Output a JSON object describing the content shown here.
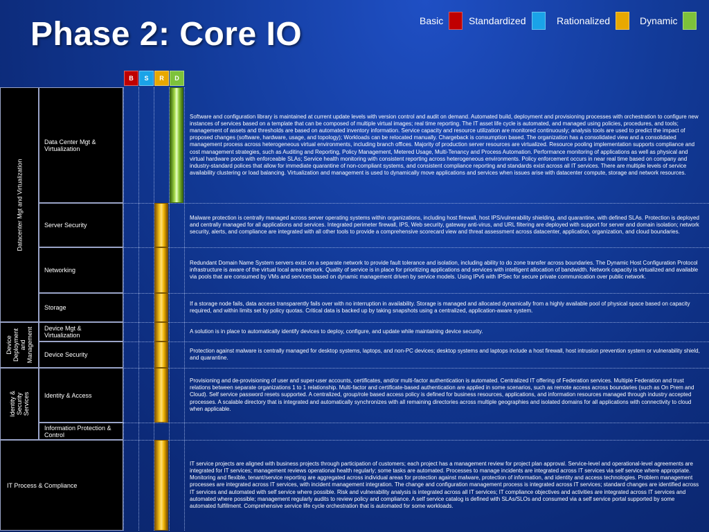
{
  "title": "Phase 2: Core IO",
  "legend": [
    {
      "label": "Basic",
      "color": "#c00000"
    },
    {
      "label": "Standardized",
      "color": "#1aa3e8"
    },
    {
      "label": "Rationalized",
      "color": "#e8a800"
    },
    {
      "label": "Dynamic",
      "color": "#7dc23a"
    }
  ],
  "column_headers": [
    {
      "label": "B",
      "color": "#c00000"
    },
    {
      "label": "S",
      "color": "#1aa3e8"
    },
    {
      "label": "R",
      "color": "#e8a800"
    },
    {
      "label": "D",
      "color": "#7dc23a"
    }
  ],
  "categories": {
    "datacenter": "Datacenter Mgt and Virtualization",
    "device": "Device Deployment and Management",
    "identity": "Identity & Security Services",
    "itprocess": "IT Process & Compliance"
  },
  "rows": [
    {
      "name": "Data Center Mgt & Virtualization",
      "level": "Dynamic",
      "description": "Software and configuration library is maintained at current update levels with version control and audit on demand. Automated build, deployment and provisioning processes with orchestration to configure new instances of services based on a template that can be composed of multiple virtual images; real time reporting.  The IT asset life cycle is automated, and managed using policies, procedures, and tools; management of assets and thresholds are based on automated inventory information. Service capacity and resource utilization are monitored continuously; analysis tools are used to predict the impact of proposed changes (software, hardware, usage, and topology); Workloads can be relocated manually. Chargeback is consumption based. The organization has a consolidated view and a consolidated management process across heterogeneous virtual environments, including branch offices. Majority of production server resources are virtualized. Resource pooling implementation supports compliance and cost management strategies, such as Auditing and Reporting, Policy Management, Metered Usage, Multi-Tenancy and Process Automation. Performance monitoring of applications as well as physical and virtual hardware pools with enforceable SLAs; Service health monitoring with consistent reporting across heterogeneous environments. Policy enforcement occurs in near real time based on company and industry-standard polices that allow for immediate quarantine of non-compliant systems, and consistent compliance reporting and standards exist across all IT services. There are multiple levels of service availability clustering or load balancing. Virtualization and management is used to dynamically move applications and services when issues arise with datacenter compute, storage and network resources."
    },
    {
      "name": "Server Security",
      "level": "Rationalized",
      "description": "Malware protection is centrally managed across server operating systems within organizations, including host firewall, host IPS/vulnerability shielding, and quarantine, with defined SLAs. Protection is deployed and centrally managed for all applications and services. Integrated perimeter firewall, IPS, Web security, gateway anti-virus, and URL filtering are deployed with support for server and domain isolation; network security, alerts, and compliance are integrated with all other tools to provide a comprehensive scorecard view and threat assessment across datacenter, application, organization, and cloud boundaries."
    },
    {
      "name": "Networking",
      "level": "Rationalized",
      "description": "Redundant Domain Name System servers exist on a separate network to provide fault tolerance and isolation, including ability to do zone transfer across boundaries. The Dynamic Host Configuration Protocol infrastructure is aware of the virtual local area network. Quality of service is in place for prioritizing applications and services with intelligent allocation of bandwidth. Network capacity is virtualized and available via pools that are consumed by VMs and services based on dynamic management driven by service models.   Using IPv6 with IPSec for secure private communication over public network."
    },
    {
      "name": "Storage",
      "level": "Rationalized",
      "description": "If a storage node fails, data access transparently fails over with no interruption in availability. Storage is managed and allocated dynamically from a highly available pool of physical space based on capacity required, and within limits set by policy quotas. Critical data is backed up by taking snapshots using a centralized, application-aware system."
    },
    {
      "name": "Device Mgt & Virtualization",
      "level": "Rationalized",
      "description": "A solution is in place to automatically identify devices to deploy, configure, and update while maintaining device security."
    },
    {
      "name": "Device Security",
      "level": "Rationalized",
      "description": "Protection against malware is centrally managed for desktop systems, laptops, and non-PC devices; desktop systems and laptops include a host firewall, host intrusion prevention system or vulnerability shield, and quarantine."
    },
    {
      "name": "Identity & Access",
      "level": "Rationalized",
      "description": "Provisioning and de-provisioning of user and super-user accounts, certificates, and/or multi-factor authentication is automated. Centralized IT offering of Federation services. Multiple Federation and trust relations between separate organizations 1 to 1 relationship. Multi-factor and certificate-based authentication are applied in some scenarios, such as remote access across boundaries (such as On Prem and Cloud). Self service password resets supported. A centralized, group/role based access policy is defined for business resources, applications, and information resources managed through industry accepted processes. A scalable directory that is integrated and automatically synchronizes with all remaining directories across multiple geographies and isolated domains for all applications with connectivity to cloud when applicable."
    },
    {
      "name": "Information Protection & Control",
      "level": "",
      "description": ""
    },
    {
      "name": "IT Process & Compliance",
      "level": "Rationalized",
      "description": "IT service projects are aligned with business projects through participation of customers; each project has a management review for project plan approval.   Service-level and operational-level agreements are integrated for IT services; management reviews operational health regularly; some tasks are automated. Processes to manage incidents are integrated across IT services via self service where appropriate. Monitoring and flexible, tenant/service reporting are aggregated across individual areas for protection against malware, protection of information, and identity and access technologies. Problem management processes are integrated across IT services, with incident management integration. The change and configuration management process is integrated across IT services; standard changes are identified across IT services and automated with self service where possible.  Risk and vulnerability analysis is integrated across all IT services; IT compliance objectives and activities are integrated across IT services and automated where possible; management regularly audits to review policy and compliance. A self service catalog is defined with SLAs/SLOs and consumed via a self service portal supported by some automated fulfillment. Comprehensive service life cycle orchestration that is automated for some workloads."
    }
  ]
}
